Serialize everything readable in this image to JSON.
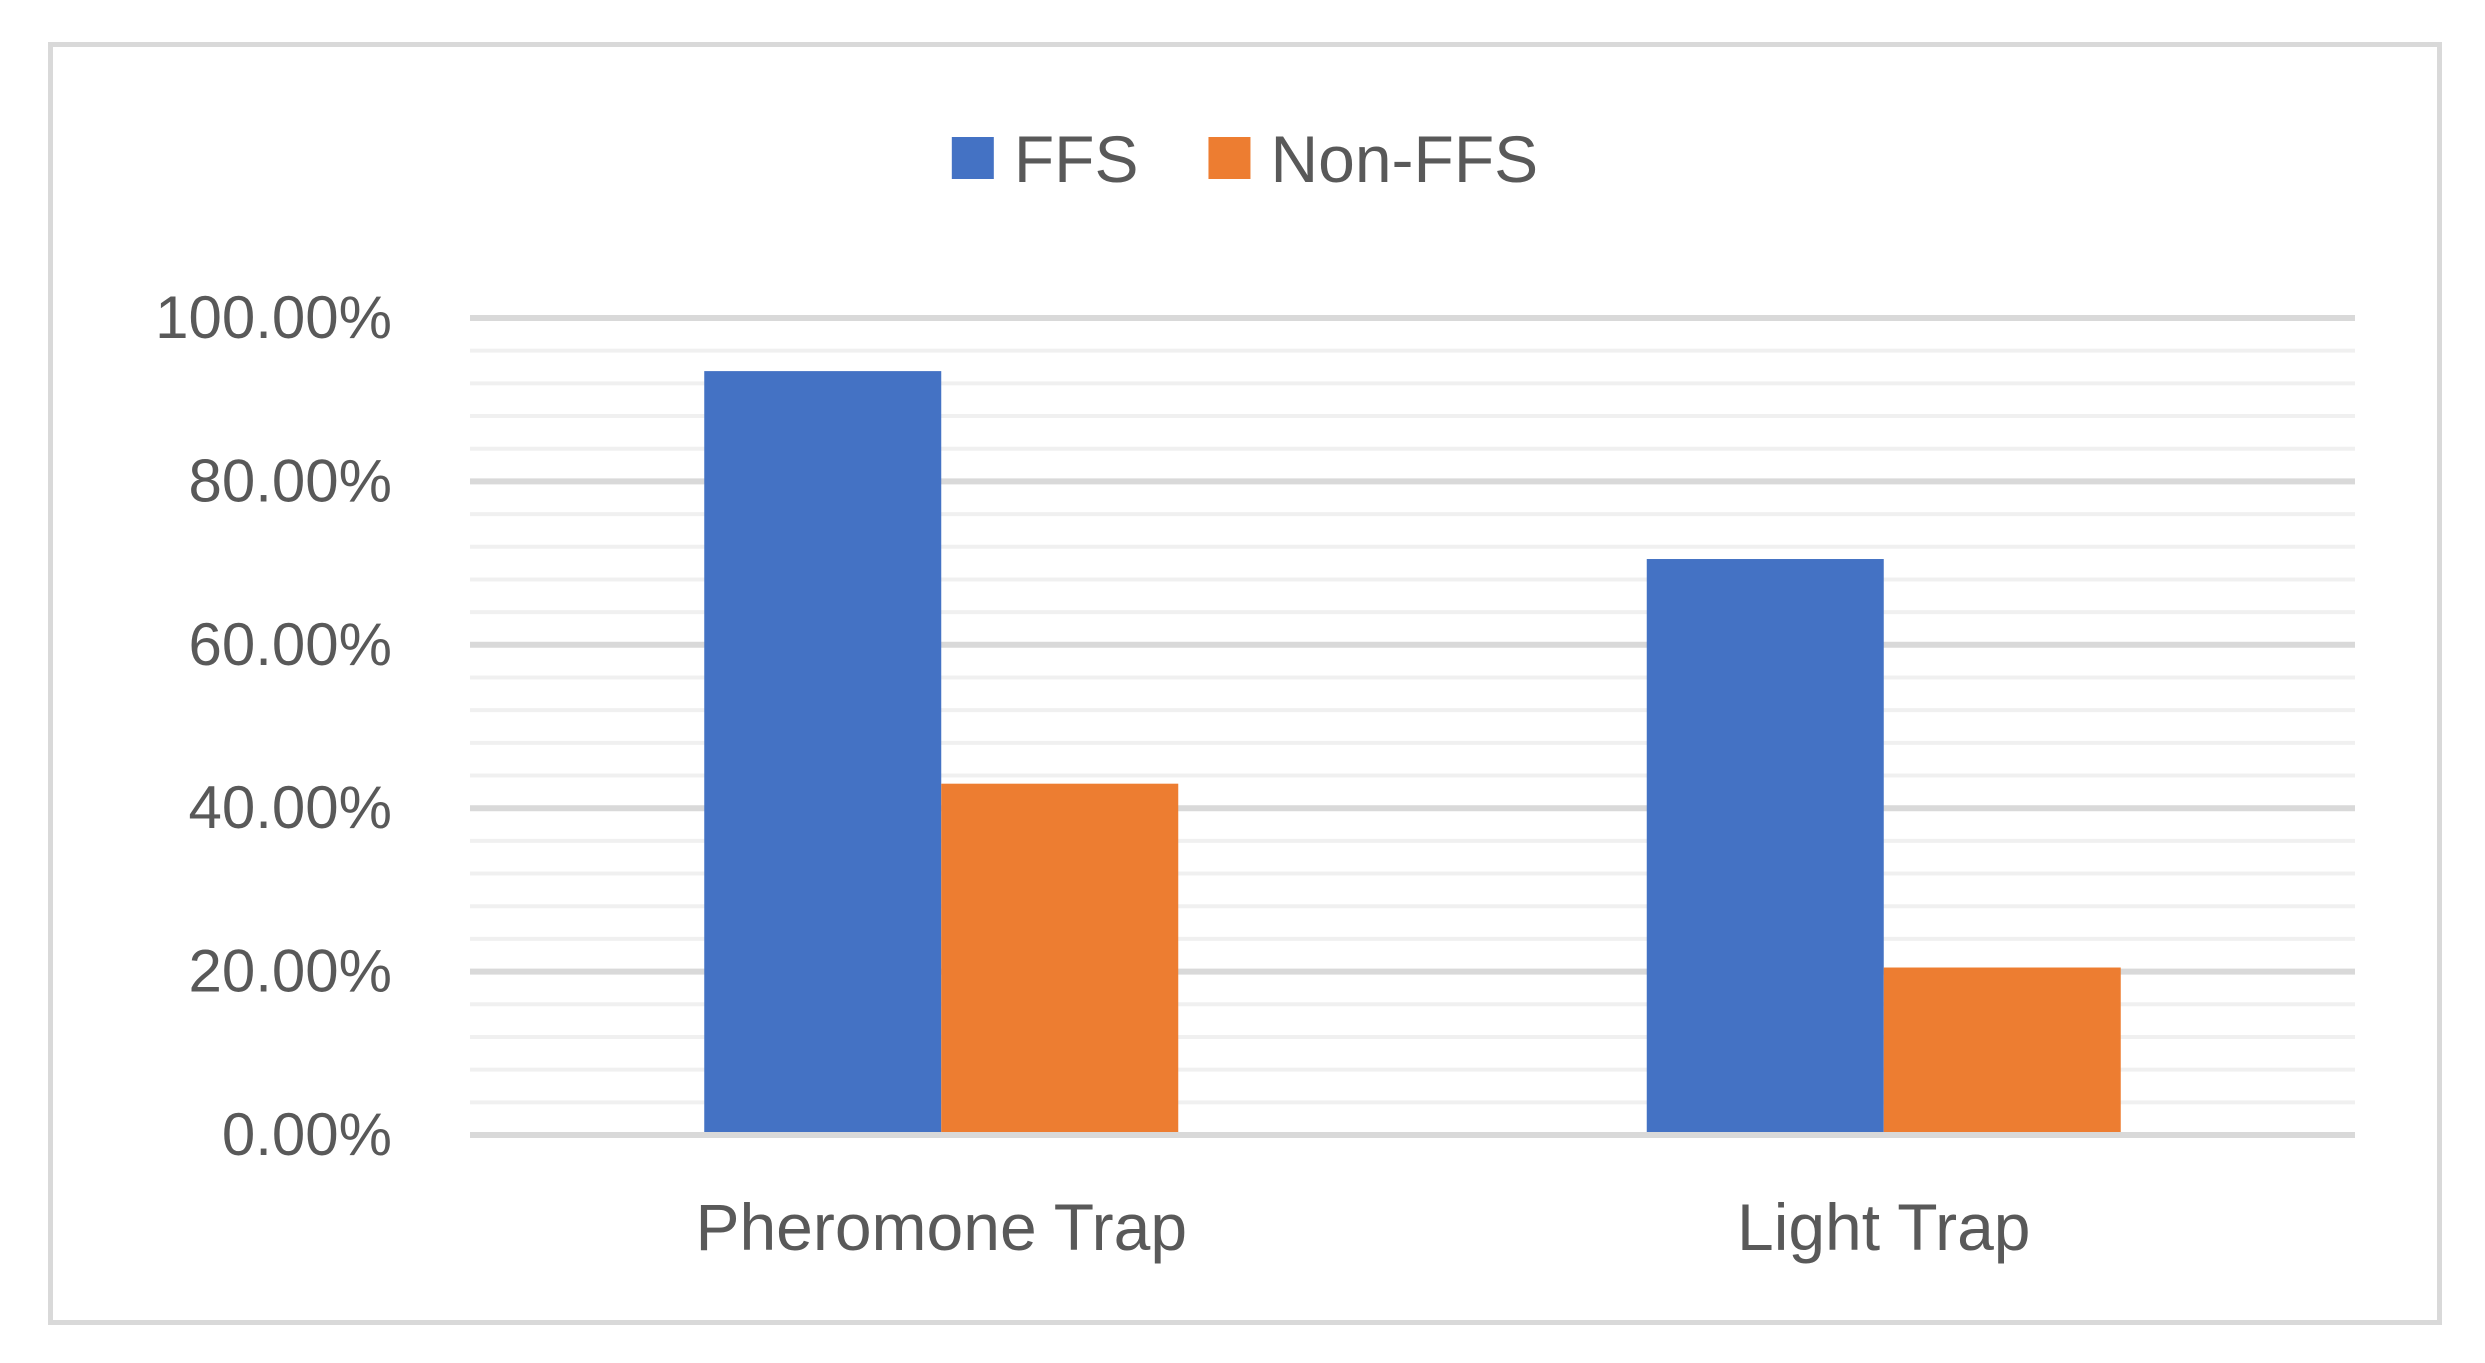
{
  "chart_data": {
    "type": "bar",
    "categories": [
      "Pheromone Trap",
      "Light Trap"
    ],
    "series": [
      {
        "name": "FFS",
        "values": [
          93.5,
          70.5
        ],
        "color": "#4472c4"
      },
      {
        "name": "Non-FFS",
        "values": [
          43.0,
          20.5
        ],
        "color": "#ed7d31"
      }
    ],
    "ylim": [
      0,
      100
    ],
    "yticks": [
      0,
      20,
      40,
      60,
      80,
      100
    ],
    "ytick_labels": [
      "0.00%",
      "20.00%",
      "40.00%",
      "60.00%",
      "80.00%",
      "100.00%"
    ],
    "title": "",
    "xlabel": "",
    "ylabel": "",
    "legend_position": "top-center",
    "grid": true,
    "minor_grid": true,
    "gridline_color": "#d9d9d9"
  }
}
